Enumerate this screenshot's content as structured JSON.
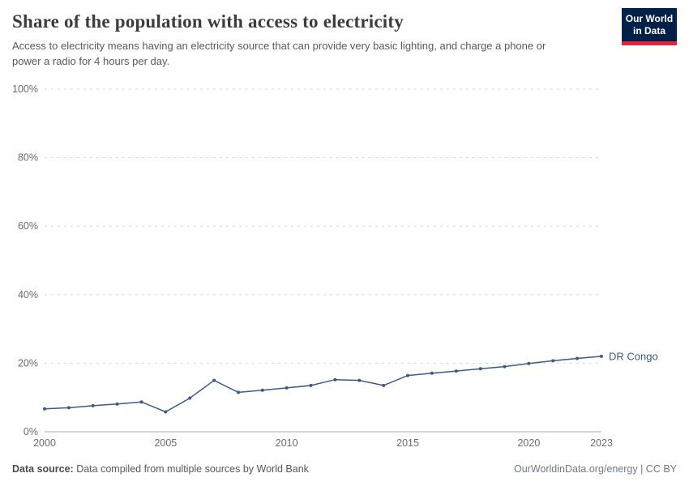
{
  "colors": {
    "line": "#3d5a80",
    "series_label": "#3d5a80",
    "gridline": "#d9d9d9",
    "axis_line": "#a8a8a8",
    "logo_navy": "#002147",
    "logo_red": "#e5233d"
  },
  "header": {
    "title": "Share of the population with access to electricity",
    "subtitle": "Access to electricity means having an electricity source that can provide very basic lighting, and charge a phone or power a radio for 4 hours per day.",
    "logo": {
      "line1": "Our World",
      "line2": "in Data"
    }
  },
  "chart_data": {
    "type": "line",
    "title": "Share of the population with access to electricity",
    "xlabel": "",
    "ylabel": "",
    "xlim": [
      2000,
      2023
    ],
    "ylim": [
      0,
      100
    ],
    "xticks": [
      2000,
      2005,
      2010,
      2015,
      2020,
      2023
    ],
    "yticks": [
      0,
      20,
      40,
      60,
      80,
      100
    ],
    "ytick_labels": [
      "0%",
      "20%",
      "40%",
      "60%",
      "80%",
      "100%"
    ],
    "grid": "horizontal-dashed",
    "legend_position": "end-of-line-label",
    "series": [
      {
        "name": "DR Congo",
        "x": [
          2000,
          2001,
          2002,
          2003,
          2004,
          2005,
          2006,
          2007,
          2008,
          2009,
          2010,
          2011,
          2012,
          2013,
          2014,
          2015,
          2016,
          2017,
          2018,
          2019,
          2020,
          2021,
          2022,
          2023
        ],
        "values": [
          6.7,
          7.0,
          7.6,
          8.1,
          8.7,
          5.8,
          9.8,
          15.0,
          11.5,
          12.1,
          12.8,
          13.5,
          15.2,
          15.0,
          13.5,
          16.4,
          17.1,
          17.7,
          18.4,
          19.0,
          19.9,
          20.7,
          21.4,
          22.0
        ]
      }
    ]
  },
  "footer": {
    "source_label": "Data source:",
    "source_text": " Data compiled from multiple sources by World Bank",
    "right_text": "OurWorldinData.org/energy | CC BY"
  }
}
